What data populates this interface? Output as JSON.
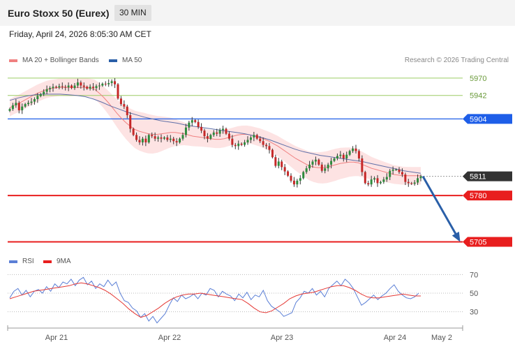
{
  "header": {
    "title": "Euro Stoxx 50 (Eurex)",
    "interval": "30 MIN",
    "datetime": "Friday, April 24, 2026 8:05:30 AM CET",
    "credit": "Research © 2026 Trading Central"
  },
  "legend": {
    "ma20_label": "MA 20 + Bollinger Bands",
    "ma50_label": "MA 50",
    "rsi_label": "RSI",
    "rsi_ma_label": "9MA"
  },
  "colors": {
    "bollinger_fill": "#fde0e0",
    "ma20": "#f08080",
    "ma50": "#5f6fa8",
    "candle_up": "#2e8b3c",
    "candle_down": "#c62828",
    "resistance": "#9ccc65",
    "pivot": "#1e5ee8",
    "support": "#e81e1e",
    "current": "#333333",
    "forecast_arrow": "#2a5fa8",
    "rsi": "#5b7fd6",
    "rsi_ma": "#e53935"
  },
  "chart_data": [
    {
      "type": "candlestick",
      "title": "Euro Stoxx 50 (Eurex)",
      "timeframe": "30 MIN",
      "ylim": [
        5692,
        5988
      ],
      "x_tick_labels": [
        "Apr 21",
        "Apr 22",
        "Apr 23",
        "Apr 24",
        "May 2"
      ],
      "levels": [
        {
          "label": "5970",
          "value": 5970,
          "kind": "resistance"
        },
        {
          "label": "5942",
          "value": 5942,
          "kind": "resistance"
        },
        {
          "label": "5904",
          "value": 5904,
          "kind": "pivot"
        },
        {
          "label": "5811",
          "value": 5811,
          "kind": "current"
        },
        {
          "label": "5780",
          "value": 5780,
          "kind": "support"
        },
        {
          "label": "5705",
          "value": 5705,
          "kind": "target"
        }
      ],
      "close": [
        5920,
        5926,
        5930,
        5918,
        5924,
        5928,
        5930,
        5932,
        5936,
        5941,
        5944,
        5948,
        5952,
        5954,
        5956,
        5955,
        5957,
        5956,
        5955,
        5958,
        5954,
        5958,
        5963,
        5958,
        5956,
        5953,
        5956,
        5954,
        5957,
        5958,
        5961,
        5960,
        5962,
        5965,
        5960,
        5937,
        5928,
        5924,
        5910,
        5888,
        5878,
        5870,
        5866,
        5872,
        5866,
        5878,
        5876,
        5872,
        5874,
        5872,
        5874,
        5870,
        5872,
        5868,
        5866,
        5872,
        5878,
        5890,
        5898,
        5902,
        5899,
        5891,
        5885,
        5876,
        5872,
        5878,
        5882,
        5880,
        5886,
        5888,
        5880,
        5872,
        5862,
        5860,
        5864,
        5862,
        5866,
        5870,
        5874,
        5878,
        5872,
        5868,
        5862,
        5860,
        5854,
        5842,
        5828,
        5835,
        5826,
        5819,
        5812,
        5804,
        5798,
        5804,
        5808,
        5818,
        5824,
        5830,
        5835,
        5838,
        5830,
        5820,
        5824,
        5830,
        5836,
        5840,
        5844,
        5846,
        5840,
        5846,
        5852,
        5856,
        5852,
        5840,
        5818,
        5800,
        5798,
        5806,
        5808,
        5800,
        5802,
        5806,
        5810,
        5820,
        5822,
        5822,
        5818,
        5814,
        5802,
        5800,
        5799,
        5801,
        5808,
        5811
      ],
      "ma20": [
        5922,
        5926,
        5929,
        5933,
        5937,
        5941,
        5945,
        5948,
        5951,
        5953,
        5954,
        5955,
        5955,
        5955,
        5955,
        5955,
        5955,
        5955,
        5954,
        5952,
        5946,
        5939,
        5931,
        5922,
        5913,
        5905,
        5898,
        5892,
        5887,
        5884,
        5882,
        5880,
        5879,
        5879,
        5880,
        5881,
        5882,
        5882,
        5881,
        5880,
        5878,
        5876,
        5875,
        5874,
        5873,
        5872,
        5871,
        5871,
        5872,
        5874,
        5876,
        5878,
        5879,
        5879,
        5878,
        5876,
        5874,
        5871,
        5868,
        5864,
        5860,
        5855,
        5850,
        5845,
        5840,
        5836,
        5832,
        5828,
        5826,
        5825,
        5825,
        5826,
        5828,
        5830,
        5832,
        5833,
        5834,
        5834,
        5833,
        5830,
        5827,
        5824,
        5822,
        5820,
        5818,
        5816,
        5814,
        5813,
        5812,
        5812,
        5812,
        5812,
        5812
      ],
      "ma50": [
        5934,
        5938,
        5941,
        5943,
        5944,
        5944,
        5944,
        5943,
        5942,
        5940,
        5936,
        5931,
        5925,
        5920,
        5915,
        5911,
        5907,
        5904,
        5901,
        5899,
        5897,
        5894,
        5892,
        5890,
        5888,
        5886,
        5884,
        5882,
        5880,
        5877,
        5874,
        5870,
        5865,
        5860,
        5855,
        5851,
        5848,
        5845,
        5843,
        5841,
        5839,
        5837,
        5835,
        5832,
        5829,
        5826,
        5823,
        5820,
        5818,
        5816
      ]
    },
    {
      "type": "line",
      "title": "RSI",
      "ylim": [
        20,
        80
      ],
      "y_tick_labels": [
        "70",
        "50",
        "30"
      ],
      "series": [
        {
          "name": "RSI",
          "values": [
            45,
            52,
            55,
            48,
            53,
            46,
            52,
            54,
            50,
            57,
            52,
            60,
            56,
            62,
            60,
            65,
            58,
            64,
            67,
            59,
            63,
            55,
            60,
            57,
            64,
            58,
            62,
            50,
            42,
            40,
            34,
            31,
            24,
            28,
            20,
            25,
            18,
            23,
            28,
            37,
            45,
            41,
            48,
            44,
            46,
            49,
            44,
            50,
            48,
            55,
            53,
            46,
            52,
            49,
            47,
            42,
            49,
            45,
            51,
            43,
            48,
            46,
            53,
            42,
            36,
            33,
            30,
            25,
            27,
            29,
            40,
            45,
            52,
            50,
            55,
            48,
            52,
            46,
            55,
            59,
            63,
            58,
            65,
            61,
            55,
            46,
            37,
            40,
            44,
            48,
            43,
            47,
            50,
            55,
            59,
            52,
            48,
            45,
            44,
            46,
            50
          ]
        },
        {
          "name": "9MA",
          "values": [
            44,
            46,
            48,
            50,
            52,
            53,
            54,
            55,
            56,
            57,
            58,
            60,
            61,
            60,
            58,
            56,
            53,
            49,
            44,
            39,
            33,
            28,
            24,
            26,
            30,
            34,
            39,
            43,
            46,
            48,
            49,
            49,
            50,
            49,
            48,
            47,
            46,
            45,
            44,
            43,
            39,
            34,
            30,
            29,
            31,
            35,
            39,
            44,
            47,
            49,
            50,
            51,
            53,
            55,
            57,
            58,
            58,
            56,
            53,
            49,
            46,
            45,
            45,
            46,
            47,
            48,
            49,
            48,
            47,
            47
          ]
        }
      ]
    }
  ]
}
